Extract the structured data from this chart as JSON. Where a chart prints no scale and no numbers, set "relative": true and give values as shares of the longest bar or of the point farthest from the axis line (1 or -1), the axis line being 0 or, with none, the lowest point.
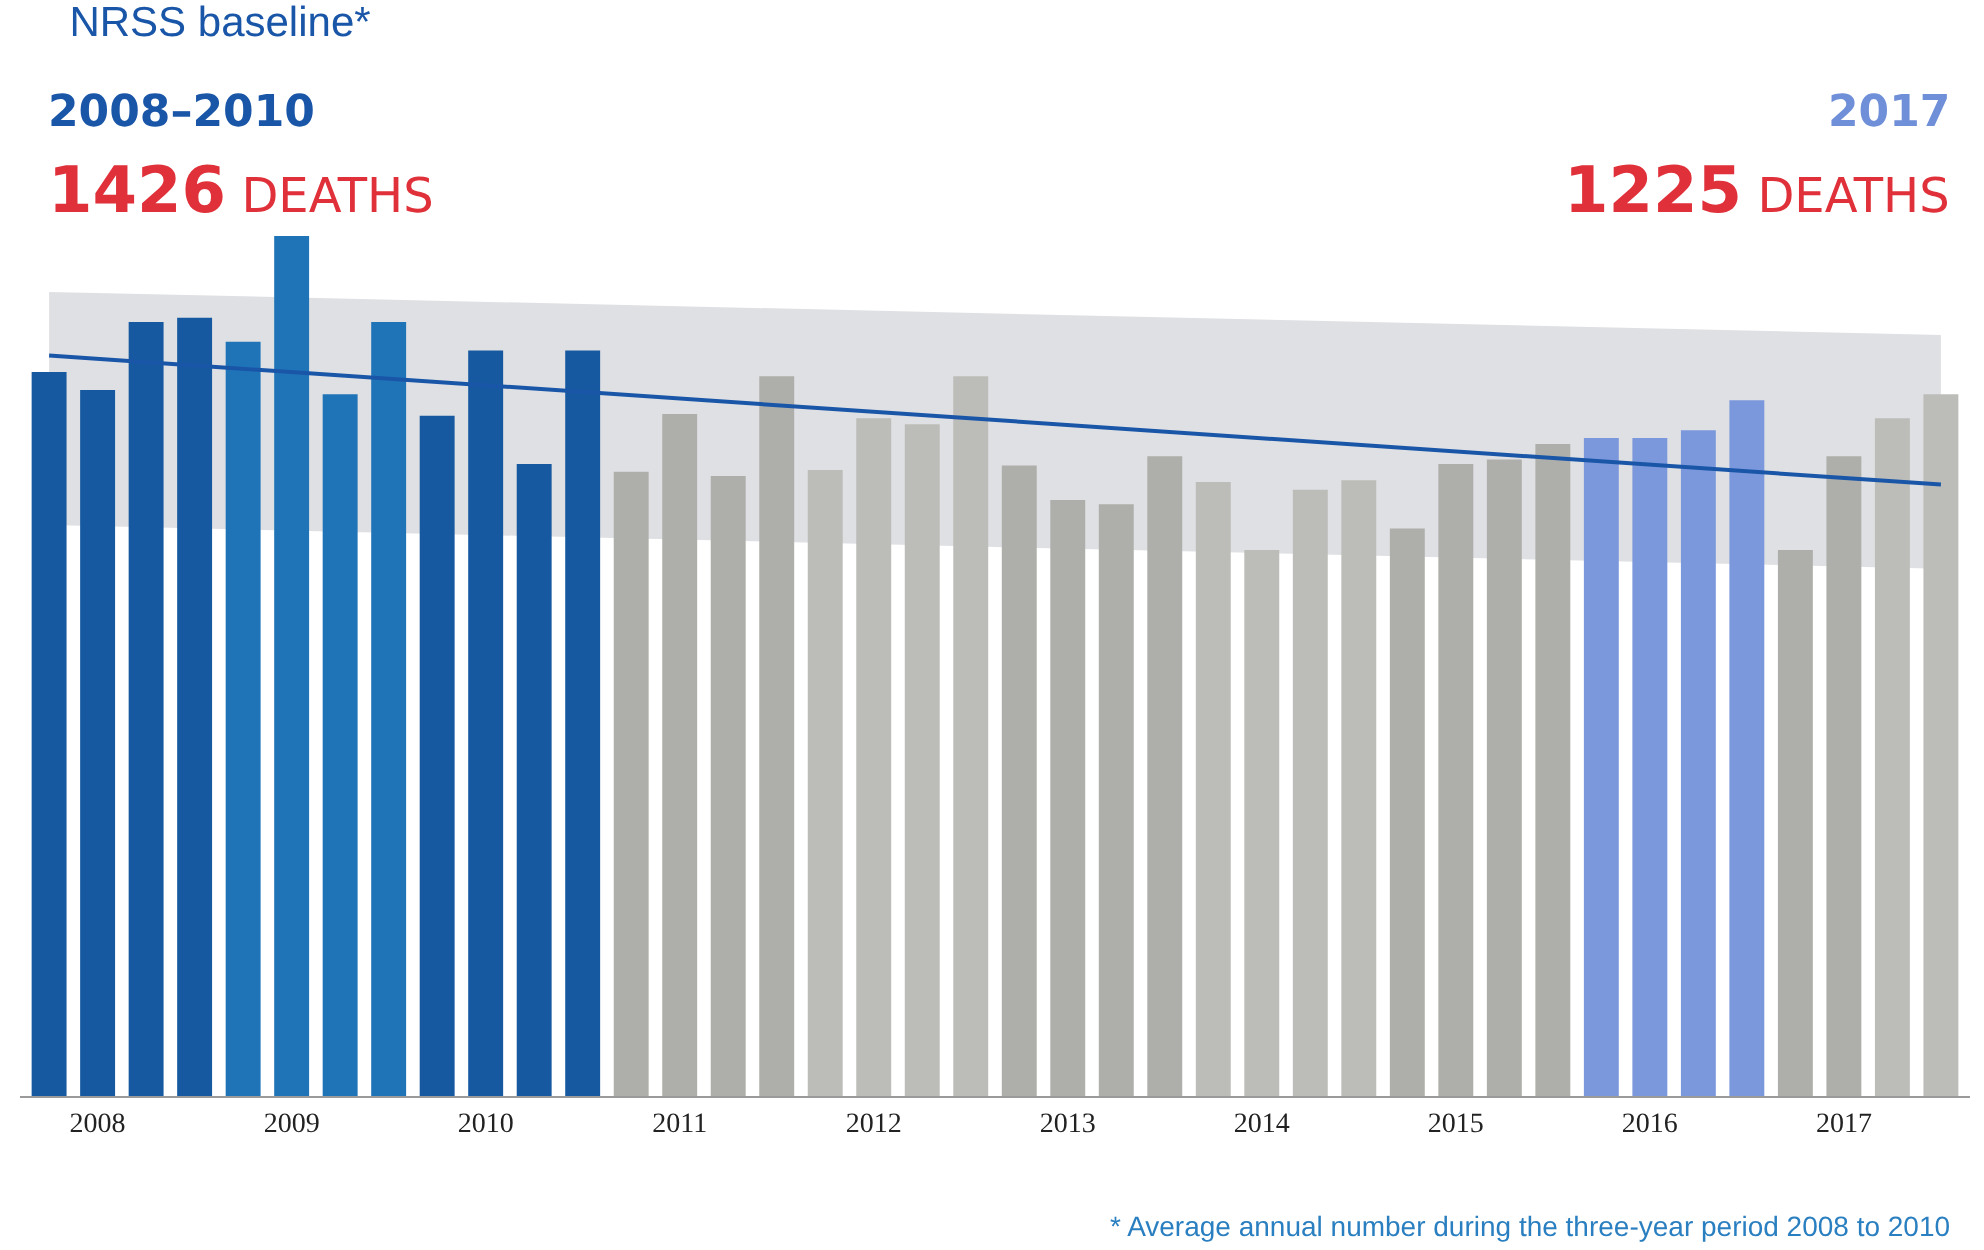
{
  "chart_data": {
    "type": "bar",
    "title": "NRSS baseline*",
    "relative": true,
    "grid": false,
    "tick_labels": "x",
    "annotations": [
      "2008–2010",
      "1426 DEATHS",
      "2017",
      "1225 DEATHS",
      "* Average annual number during the three-year period 2008 to 2010"
    ],
    "categories": [
      null,
      "2008",
      null,
      null,
      null,
      "2009",
      null,
      null,
      null,
      "2010",
      null,
      null,
      null,
      "2011",
      null,
      null,
      null,
      "2012",
      null,
      null,
      null,
      "2013",
      null,
      null,
      null,
      "2014",
      null,
      null,
      null,
      "2015",
      null,
      null,
      null,
      "2016",
      null,
      null,
      null,
      "2017",
      null,
      null
    ],
    "series": [
      {
        "values": [
          0.842,
          0.821,
          0.9,
          0.905,
          0.877,
          1,
          0.816,
          0.9,
          0.791,
          0.867,
          0.735,
          0.867,
          0.726,
          0.793,
          0.721,
          0.837,
          0.728,
          0.788,
          0.781,
          0.837,
          0.733,
          0.693,
          0.688,
          0.744,
          0.714,
          0.635,
          0.705,
          0.716,
          0.66,
          0.735,
          0.74,
          0.758,
          0.765,
          0.765,
          0.774,
          0.809,
          0.635,
          0.744,
          0.788,
          0.816
        ],
        "colors": [
          "#1659a0",
          "#1659a0",
          "#1659a0",
          "#1659a0",
          "#1f74b8",
          "#1f74b8",
          "#1f74b8",
          "#1f74b8",
          "#1659a0",
          "#1659a0",
          "#1659a0",
          "#1659a0",
          "#aeaeaa",
          "#aeaeaa",
          "#aeaeaa",
          "#aeaeaa",
          "#bcbcb8",
          "#bcbcb8",
          "#bcbcb8",
          "#bcbcb8",
          "#aeaeaa",
          "#aeaeaa",
          "#aeaeaa",
          "#aeaeaa",
          "#bcbcb8",
          "#bcbcb8",
          "#bcbcb8",
          "#bcbcb8",
          "#aeaeaa",
          "#aeaeaa",
          "#aeaeaa",
          "#aeaeaa",
          "#7b98dc",
          "#7b98dc",
          "#7b98dc",
          "#7b98dc",
          "#aeaeaa",
          "#aeaeaa",
          "#bcbcb8",
          "#bcbcb8"
        ]
      },
      {
        "type": "line",
        "color": "#1a56a8",
        "values": [
          0.861,
          null,
          null,
          null,
          null,
          null,
          null,
          null,
          null,
          null,
          null,
          null,
          null,
          null,
          null,
          null,
          null,
          null,
          null,
          null,
          null,
          null,
          null,
          null,
          null,
          null,
          null,
          null,
          null,
          null,
          null,
          null,
          null,
          null,
          null,
          null,
          null,
          null,
          null,
          0.711
        ],
        "lower": [
          0.664,
          null,
          null,
          null,
          null,
          null,
          null,
          null,
          null,
          null,
          null,
          null,
          null,
          null,
          null,
          null,
          null,
          null,
          null,
          null,
          null,
          null,
          null,
          null,
          null,
          null,
          null,
          null,
          null,
          null,
          null,
          null,
          null,
          null,
          null,
          null,
          null,
          null,
          null,
          0.613
        ],
        "upper": [
          0.935,
          null,
          null,
          null,
          null,
          null,
          null,
          null,
          null,
          null,
          null,
          null,
          null,
          null,
          null,
          null,
          null,
          null,
          null,
          null,
          null,
          null,
          null,
          null,
          null,
          null,
          null,
          null,
          null,
          null,
          null,
          null,
          null,
          null,
          null,
          null,
          null,
          null,
          null,
          0.885
        ]
      }
    ]
  }
}
